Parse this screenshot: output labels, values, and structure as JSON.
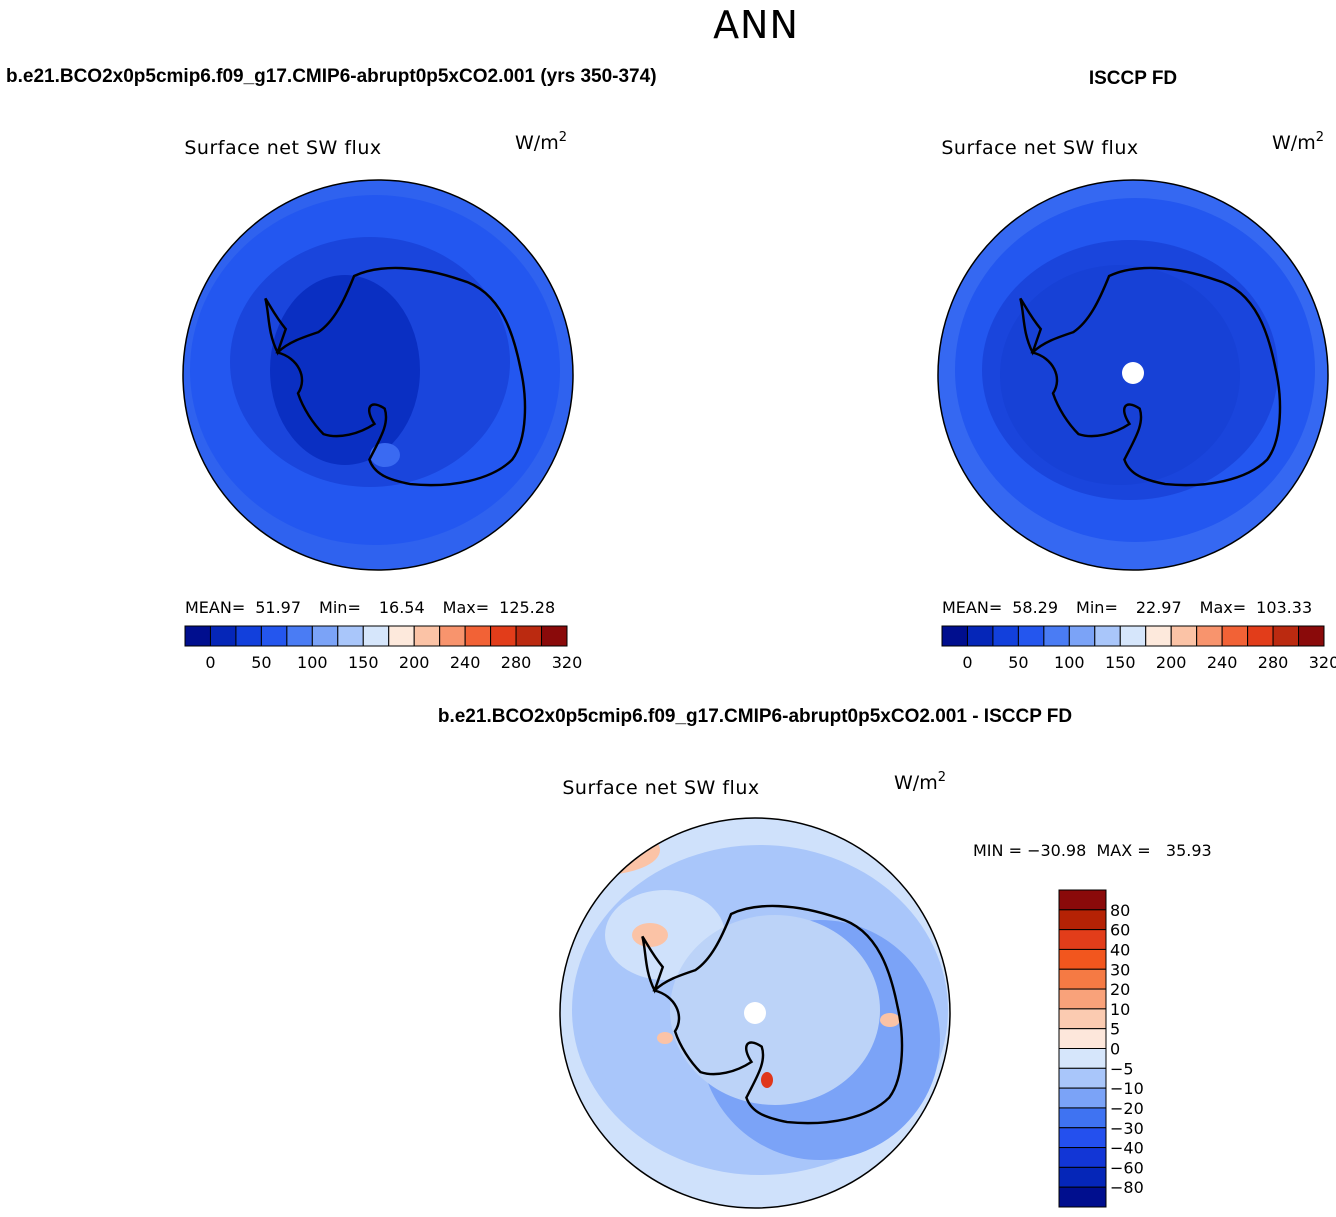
{
  "figure": {
    "season_title": "ANN"
  },
  "panels": [
    {
      "case_title": "b.e21.BCO2x0p5cmip6.f09_g17.CMIP6-abrupt0p5xCO2.001 (yrs 350-374)",
      "variable": "Surface net SW flux",
      "units_base": "W/m",
      "units_exp": "2",
      "stats": {
        "mean_label": "MEAN=",
        "mean": "51.97",
        "min_label": "Min=",
        "min": "16.54",
        "max_label": "Max=",
        "max": "125.28"
      },
      "fields": {
        "center": "#0a2fc2",
        "inner": "#1a45dc",
        "ring": "#2357f0",
        "outer": "#2f62ef"
      }
    },
    {
      "case_title": "ISCCP FD",
      "variable": "Surface net SW flux",
      "units_base": "W/m",
      "units_exp": "2",
      "stats": {
        "mean_label": "MEAN=",
        "mean": "58.29",
        "min_label": "Min=",
        "min": "22.97",
        "max_label": "Max=",
        "max": "103.33"
      },
      "fields": {
        "center": "#1741d6",
        "inner": "#1a45dc",
        "ring": "#2357f0",
        "outer": "#3568f2"
      }
    }
  ],
  "absolute_colorbar": {
    "colors": [
      "#000e8e",
      "#0526b8",
      "#1240dc",
      "#2456ee",
      "#4a7cf4",
      "#7ba3f7",
      "#a9c6fa",
      "#d6e6fb",
      "#fde9dc",
      "#fbc3a6",
      "#f8946d",
      "#f26236",
      "#e23d1a",
      "#bb2a10",
      "#8a0a0a"
    ],
    "labels": [
      "0",
      "50",
      "100",
      "150",
      "200",
      "240",
      "280",
      "320"
    ]
  },
  "difference_panel": {
    "case_title": "b.e21.BCO2x0p5cmip6.f09_g17.CMIP6-abrupt0p5xCO2.001 - ISCCP FD",
    "variable": "Surface net SW flux",
    "units_base": "W/m",
    "units_exp": "2",
    "minmax_text": "MIN = −30.98  MAX =   35.93",
    "fields": {
      "background": "#cfe1fb",
      "ring": "#a9c6fa",
      "band": "#7ba3f7",
      "continent": "#bcd3f8",
      "warm": "#fbc3a6",
      "hot": "#e0361a"
    }
  },
  "difference_colorbar": {
    "colors": [
      "#8a0a0a",
      "#b52205",
      "#e23d1a",
      "#f2561e",
      "#f57a44",
      "#f9a27a",
      "#fbcbb1",
      "#fde7db",
      "#d6e6fb",
      "#a9c6fa",
      "#7ba3f7",
      "#3f73f2",
      "#2450ee",
      "#1236d6",
      "#0526b8",
      "#000e8e"
    ],
    "labels": [
      "80",
      "60",
      "40",
      "30",
      "20",
      "10",
      "5",
      "0",
      "−5",
      "−10",
      "−20",
      "−30",
      "−40",
      "−60",
      "−80"
    ]
  }
}
